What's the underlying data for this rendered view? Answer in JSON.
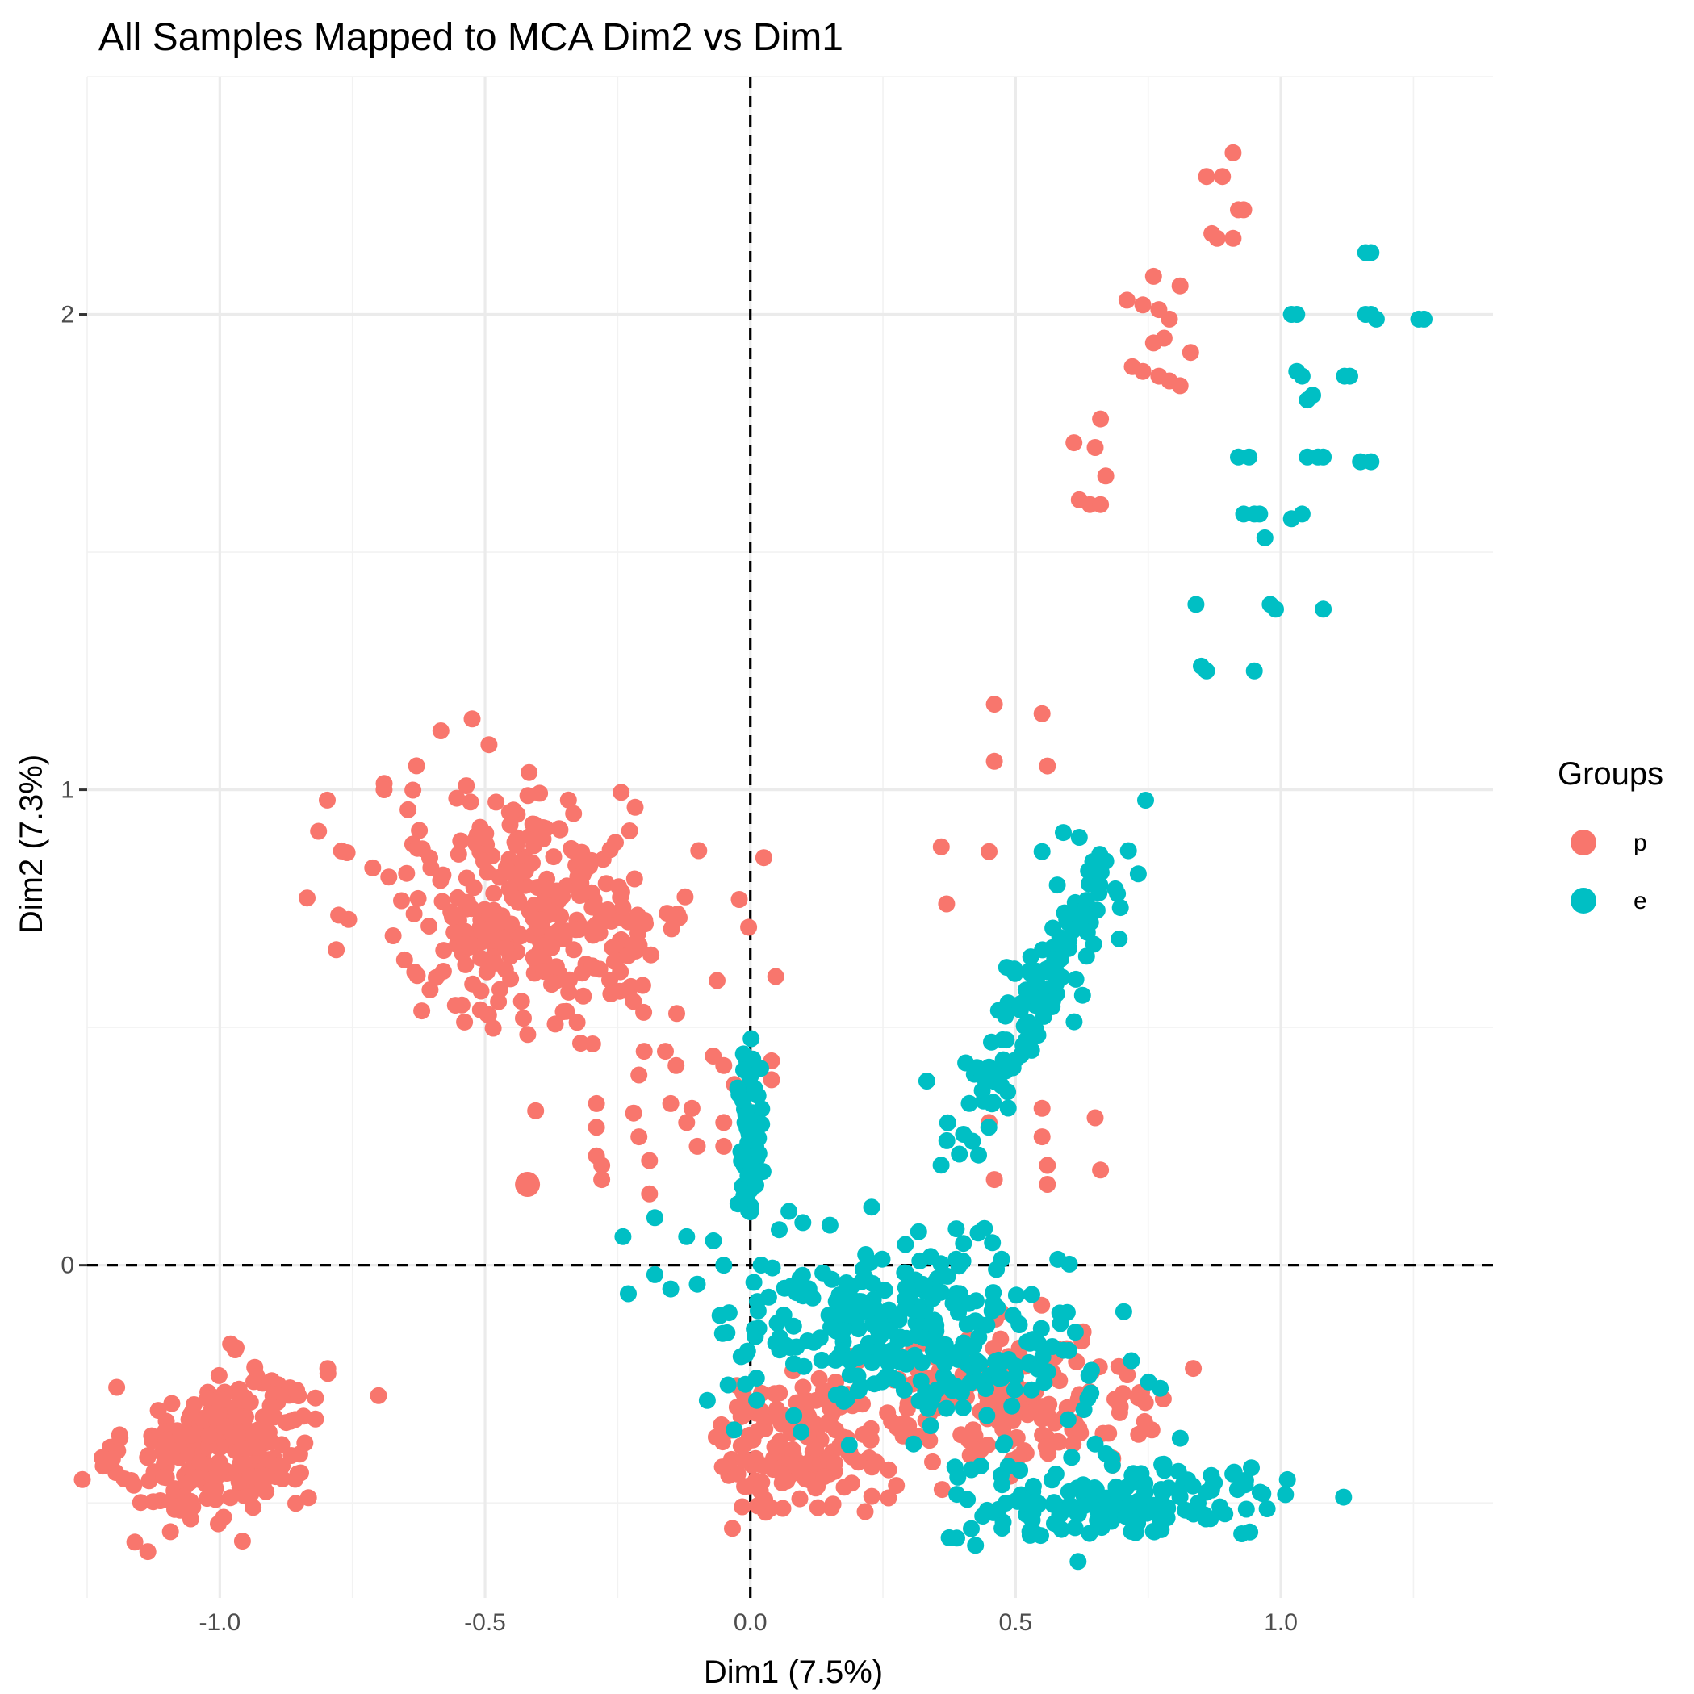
{
  "chart_data": {
    "type": "scatter",
    "title": "All Samples Mapped to MCA Dim2 vs Dim1",
    "xlabel": "Dim1 (7.5%)",
    "ylabel": "Dim2 (7.3%)",
    "xlim": [
      -1.25,
      1.4
    ],
    "ylim": [
      -0.7,
      2.5
    ],
    "x_ticks": [
      -1.0,
      -0.5,
      0.0,
      0.5,
      1.0
    ],
    "x_tick_labels": [
      "-1.0",
      "-0.5",
      "0.0",
      "0.5",
      "1.0"
    ],
    "y_ticks": [
      0,
      1,
      2
    ],
    "y_tick_labels": [
      "0",
      "1",
      "2"
    ],
    "reference_lines": {
      "x": 0,
      "y": 0,
      "style": "dashed"
    },
    "grid": true,
    "legend": {
      "title": "Groups",
      "placement": "right",
      "entries": [
        {
          "label": "p",
          "color": "#F8766D"
        },
        {
          "label": "e",
          "color": "#00BFC4"
        }
      ]
    },
    "highlight_point": {
      "group": "p",
      "x": -0.42,
      "y": 0.17
    },
    "series": [
      {
        "name": "p",
        "color": "#F8766D",
        "clusters": [
          {
            "cx": -1.0,
            "cy": -0.38,
            "sx": 0.09,
            "sy": 0.08,
            "n": 260,
            "tilt": 0.5
          },
          {
            "cx": -0.4,
            "cy": 0.75,
            "sx": 0.15,
            "sy": 0.13,
            "n": 320,
            "tilt": -0.2
          },
          {
            "cx": 0.09,
            "cy": -0.38,
            "sx": 0.08,
            "sy": 0.07,
            "n": 150,
            "tilt": 0
          },
          {
            "cx": 0.5,
            "cy": -0.28,
            "sx": 0.15,
            "sy": 0.07,
            "n": 170,
            "tilt": -0.1
          }
        ],
        "points": [
          [
            0.91,
            2.34
          ],
          [
            0.86,
            2.29
          ],
          [
            0.89,
            2.29
          ],
          [
            0.92,
            2.22
          ],
          [
            0.93,
            2.22
          ],
          [
            0.87,
            2.17
          ],
          [
            0.88,
            2.16
          ],
          [
            0.91,
            2.16
          ],
          [
            0.76,
            2.08
          ],
          [
            0.81,
            2.06
          ],
          [
            0.71,
            2.03
          ],
          [
            0.74,
            2.02
          ],
          [
            0.77,
            2.01
          ],
          [
            0.79,
            1.99
          ],
          [
            0.76,
            1.94
          ],
          [
            0.78,
            1.95
          ],
          [
            0.83,
            1.92
          ],
          [
            0.72,
            1.89
          ],
          [
            0.74,
            1.88
          ],
          [
            0.77,
            1.87
          ],
          [
            0.79,
            1.86
          ],
          [
            0.81,
            1.85
          ],
          [
            0.66,
            1.78
          ],
          [
            0.61,
            1.73
          ],
          [
            0.65,
            1.72
          ],
          [
            0.67,
            1.66
          ],
          [
            0.62,
            1.61
          ],
          [
            0.64,
            1.6
          ],
          [
            0.66,
            1.6
          ],
          [
            0.46,
            1.18
          ],
          [
            0.55,
            1.16
          ],
          [
            0.46,
            1.06
          ],
          [
            0.56,
            1.05
          ],
          [
            0.36,
            0.88
          ],
          [
            0.45,
            0.87
          ],
          [
            0.37,
            0.76
          ],
          [
            0.45,
            0.3
          ],
          [
            0.55,
            0.33
          ],
          [
            0.65,
            0.31
          ],
          [
            0.55,
            0.27
          ],
          [
            0.56,
            0.21
          ],
          [
            0.46,
            0.18
          ],
          [
            0.56,
            0.17
          ],
          [
            0.66,
            0.2
          ],
          [
            -0.29,
            0.34
          ],
          [
            -0.29,
            0.29
          ],
          [
            -0.29,
            0.23
          ],
          [
            -0.28,
            0.21
          ],
          [
            -0.28,
            0.18
          ],
          [
            -0.22,
            0.32
          ],
          [
            -0.21,
            0.27
          ],
          [
            -0.19,
            0.22
          ],
          [
            -0.19,
            0.15
          ],
          [
            -0.15,
            0.34
          ],
          [
            -0.11,
            0.33
          ],
          [
            -0.12,
            0.3
          ],
          [
            -0.1,
            0.25
          ],
          [
            -0.05,
            0.3
          ],
          [
            -0.05,
            0.25
          ],
          [
            -0.07,
            0.44
          ],
          [
            -0.05,
            0.42
          ],
          [
            -0.03,
            0.38
          ],
          [
            0.04,
            0.43
          ],
          [
            0.04,
            0.39
          ],
          [
            -0.2,
            0.45
          ],
          [
            -0.21,
            0.4
          ],
          [
            -0.16,
            0.45
          ],
          [
            -0.14,
            0.42
          ]
        ]
      },
      {
        "name": "e",
        "color": "#00BFC4",
        "clusters": [
          {
            "cx": 0.3,
            "cy": -0.15,
            "sx": 0.16,
            "sy": 0.1,
            "n": 300,
            "tilt": -0.3
          },
          {
            "cx": 0.7,
            "cy": -0.5,
            "sx": 0.16,
            "sy": 0.04,
            "n": 160,
            "tilt": 0.1
          },
          {
            "cx": 0.0,
            "cy": 0.27,
            "sx": 0.012,
            "sy": 0.1,
            "n": 70,
            "tilt": 0
          },
          {
            "cx": 0.55,
            "cy": 0.58,
            "sx": 0.04,
            "sy": 0.14,
            "n": 140,
            "tilt": 1.4
          }
        ],
        "points": [
          [
            1.17,
            2.13
          ],
          [
            1.16,
            2.13
          ],
          [
            1.02,
            2.0
          ],
          [
            1.03,
            2.0
          ],
          [
            1.16,
            2.0
          ],
          [
            1.17,
            2.0
          ],
          [
            1.18,
            1.99
          ],
          [
            1.27,
            1.99
          ],
          [
            1.26,
            1.99
          ],
          [
            1.03,
            1.88
          ],
          [
            1.04,
            1.87
          ],
          [
            1.12,
            1.87
          ],
          [
            1.13,
            1.87
          ],
          [
            1.05,
            1.82
          ],
          [
            1.06,
            1.83
          ],
          [
            0.92,
            1.7
          ],
          [
            0.94,
            1.7
          ],
          [
            1.05,
            1.7
          ],
          [
            1.07,
            1.7
          ],
          [
            1.08,
            1.7
          ],
          [
            1.15,
            1.69
          ],
          [
            1.17,
            1.69
          ],
          [
            0.93,
            1.58
          ],
          [
            0.95,
            1.58
          ],
          [
            0.96,
            1.58
          ],
          [
            1.02,
            1.57
          ],
          [
            1.04,
            1.58
          ],
          [
            0.97,
            1.53
          ],
          [
            0.84,
            1.39
          ],
          [
            0.98,
            1.39
          ],
          [
            0.99,
            1.38
          ],
          [
            1.08,
            1.38
          ],
          [
            0.85,
            1.26
          ],
          [
            0.86,
            1.25
          ],
          [
            0.95,
            1.25
          ],
          [
            0.59,
            0.91
          ],
          [
            0.62,
            0.9
          ],
          [
            0.55,
            0.87
          ],
          [
            0.67,
            0.85
          ],
          [
            -0.24,
            0.06
          ],
          [
            -0.12,
            0.06
          ],
          [
            -0.18,
            0.1
          ],
          [
            -0.23,
            -0.06
          ],
          [
            -0.18,
            -0.02
          ],
          [
            -0.1,
            -0.04
          ],
          [
            -0.05,
            0.0
          ],
          [
            -0.04,
            -0.1
          ],
          [
            -0.15,
            -0.05
          ]
        ]
      }
    ]
  }
}
